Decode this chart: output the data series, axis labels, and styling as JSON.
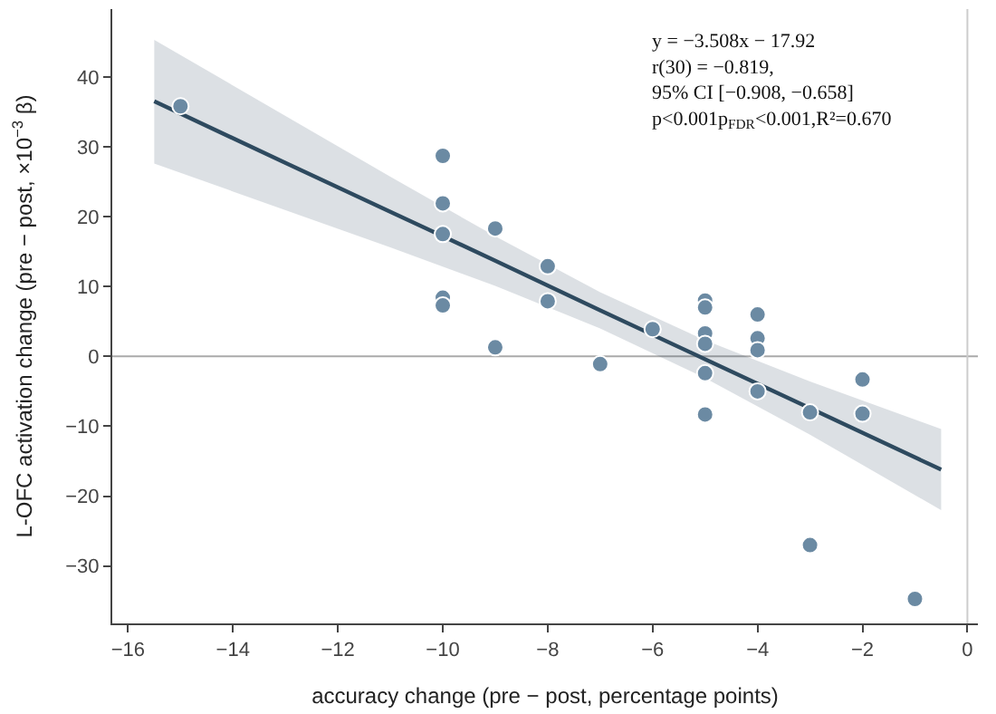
{
  "chart_data": {
    "type": "scatter",
    "xlabel": "accuracy change (pre − post, percentage points)",
    "ylabel": "L-OFC activation change (pre − post, ×10$^{−3}$ β)",
    "xlim": [
      -16.3,
      0.2
    ],
    "xticks": [
      -16,
      -14,
      -12,
      -10,
      -8,
      -6,
      -4,
      -2,
      0
    ],
    "ylim": [
      -38.2,
      49.7
    ],
    "yticks": [
      -30,
      -20,
      -10,
      0,
      10,
      20,
      30,
      40
    ],
    "grid": false,
    "marker": "circle",
    "series": [
      {
        "type": "line",
        "color": "#2e4a5f",
        "marker": "none",
        "x": [
          -15.5,
          -13,
          -11,
          -9,
          -7,
          -5,
          -3,
          -0.5
        ],
        "values": [
          36.5,
          27.7,
          20.7,
          13.7,
          6.6,
          -0.4,
          -7.4,
          -16.2
        ],
        "lower": [
          27.6,
          21.0,
          15.6,
          10.1,
          4.0,
          -3.1,
          -11.2,
          -22.0
        ],
        "upper": [
          45.3,
          34.4,
          25.7,
          17.2,
          9.2,
          2.3,
          -3.6,
          -10.4
        ]
      },
      {
        "color": "#6b8aa3",
        "x": [
          -15,
          -10,
          -10,
          -10,
          -10,
          -10,
          -9,
          -9,
          -8,
          -8,
          -7,
          -6,
          -5,
          -5,
          -5,
          -5,
          -5,
          -5,
          -4,
          -4,
          -4,
          -4,
          -3,
          -3,
          -2,
          -2,
          -1
        ],
        "values": [
          35.8,
          28.7,
          21.9,
          17.5,
          8.4,
          7.3,
          18.3,
          1.3,
          12.9,
          7.9,
          -1.1,
          3.9,
          8.0,
          7.0,
          3.3,
          1.8,
          -2.4,
          -8.3,
          6.0,
          2.6,
          0.9,
          -5.0,
          -8.0,
          -27.0,
          -3.3,
          -8.2,
          -34.7
        ]
      }
    ],
    "ref_lines": [
      {
        "axis": "y",
        "value": 0,
        "color": "#aaaaaa"
      },
      {
        "axis": "x",
        "value": 0,
        "color": "#cccccc"
      }
    ],
    "annotations": [
      "y = −3.508x − 17.92",
      "r(30) = −0.819,",
      "95% CI [−0.908, −0.658]",
      "p<0.001p$_{FDR}$<0.001,R²=0.670"
    ]
  }
}
